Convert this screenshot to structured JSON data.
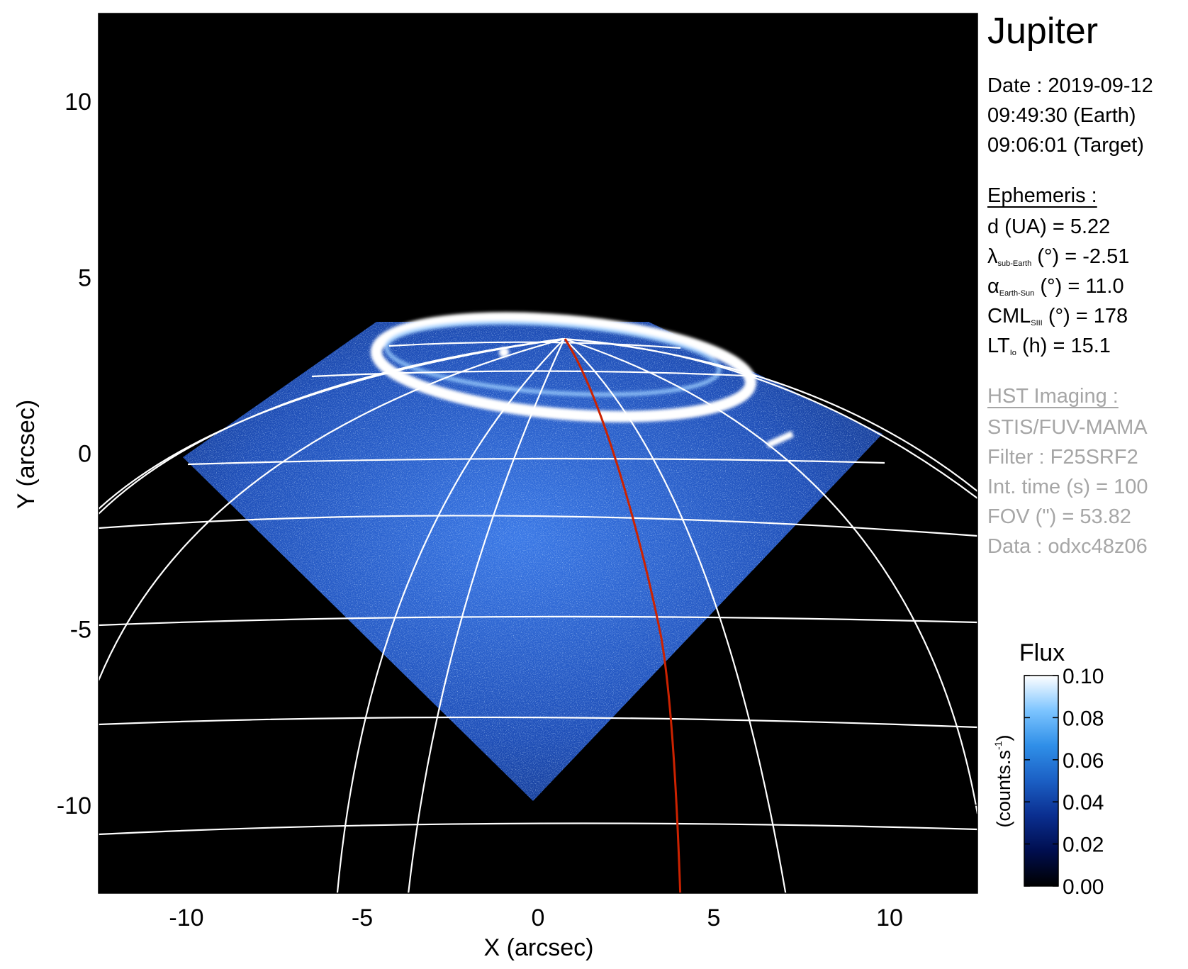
{
  "info": {
    "title": "Jupiter",
    "date": "Date : 2019-09-12",
    "time_earth": "09:49:30 (Earth)",
    "time_target": "09:06:01 (Target)",
    "ephemeris_header": "Ephemeris :",
    "ephemeris": {
      "d": "d (UA)    = 5.22",
      "lambda_sym": "λ",
      "lambda_sub": "sub-Earth",
      "lambda_rest": "(°) = -2.51",
      "alpha_sym": "α",
      "alpha_sub": "Earth-Sun",
      "alpha_rest": "(°) = 11.0",
      "cml_sym": "CML",
      "cml_sub": "SIII",
      "cml_rest": "(°) = 178",
      "lt_sym": "LT",
      "lt_sub": "Io",
      "lt_rest": "(h) = 15.1"
    },
    "hst_header": "HST Imaging :",
    "hst": {
      "instrument": "STIS/FUV-MAMA",
      "filter": "Filter : F25SRF2",
      "int_time": "Int. time (s) = 100",
      "fov": "FOV (\") = 53.82",
      "data": "Data : odxc48z06"
    }
  },
  "colors": {
    "background": "#000000",
    "grid": "#ffffff",
    "auroral_oval": "#ffffff",
    "emission": "#2f63d6",
    "io_footpath": "#cc2200"
  },
  "chart_data": {
    "type": "heatmap",
    "xlabel": "X (arcsec)",
    "ylabel": "Y (arcsec)",
    "xlim": [
      -12.5,
      12.5
    ],
    "ylim": [
      -12.5,
      12.5
    ],
    "xticks": [
      -10,
      -5,
      0,
      5,
      10
    ],
    "yticks": [
      -10,
      -5,
      0,
      5,
      10
    ],
    "colorbar": {
      "label": "Flux",
      "units": "(counts.s",
      "units_exp": "-1",
      "units_close": ")",
      "ticks": [
        "0.00",
        "0.02",
        "0.04",
        "0.06",
        "0.08",
        "0.10"
      ],
      "range": [
        0.0,
        0.1
      ],
      "colormap": [
        "#000000",
        "#000e4f",
        "#0a2e8f",
        "#1b5fc4",
        "#2f8fe8",
        "#7cc4ff",
        "#ffffff"
      ]
    }
  }
}
